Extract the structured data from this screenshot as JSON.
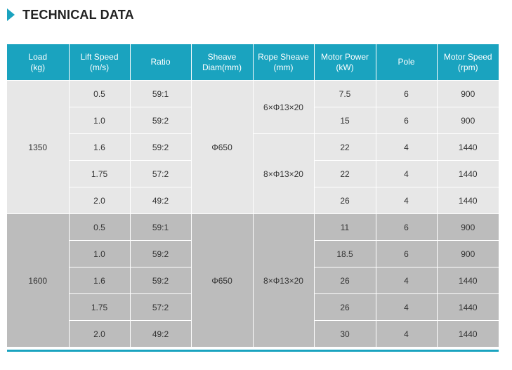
{
  "heading": {
    "title": "TECHNICAL DATA",
    "accent_color": "#1aa3bf"
  },
  "table": {
    "headers": [
      [
        "Load",
        "(kg)"
      ],
      [
        "Lift Speed",
        "(m/s)"
      ],
      [
        "Ratio"
      ],
      [
        "Sheave",
        "Diam(mm)"
      ],
      [
        "Rope Sheave",
        "(mm)"
      ],
      [
        "Motor Power",
        "(kW)"
      ],
      [
        "Pole"
      ],
      [
        "Motor Speed",
        "(rpm)"
      ]
    ],
    "groups": [
      {
        "load": "1350",
        "sheave": "Φ650",
        "rope": [
          {
            "label": "6×Φ13×20",
            "rows": 2
          },
          {
            "label": "8×Φ13×20",
            "rows": 3
          }
        ],
        "rows": [
          {
            "speed": "0.5",
            "ratio": "59:1",
            "power": "7.5",
            "pole": "6",
            "rpm": "900"
          },
          {
            "speed": "1.0",
            "ratio": "59:2",
            "power": "15",
            "pole": "6",
            "rpm": "900"
          },
          {
            "speed": "1.6",
            "ratio": "59:2",
            "power": "22",
            "pole": "4",
            "rpm": "1440"
          },
          {
            "speed": "1.75",
            "ratio": "57:2",
            "power": "22",
            "pole": "4",
            "rpm": "1440"
          },
          {
            "speed": "2.0",
            "ratio": "49:2",
            "power": "26",
            "pole": "4",
            "rpm": "1440"
          }
        ]
      },
      {
        "load": "1600",
        "sheave": "Φ650",
        "rope": [
          {
            "label": "8×Φ13×20",
            "rows": 5
          }
        ],
        "rows": [
          {
            "speed": "0.5",
            "ratio": "59:1",
            "power": "11",
            "pole": "6",
            "rpm": "900"
          },
          {
            "speed": "1.0",
            "ratio": "59:2",
            "power": "18.5",
            "pole": "6",
            "rpm": "900"
          },
          {
            "speed": "1.6",
            "ratio": "59:2",
            "power": "26",
            "pole": "4",
            "rpm": "1440"
          },
          {
            "speed": "1.75",
            "ratio": "57:2",
            "power": "26",
            "pole": "4",
            "rpm": "1440"
          },
          {
            "speed": "2.0",
            "ratio": "49:2",
            "power": "30",
            "pole": "4",
            "rpm": "1440"
          }
        ]
      }
    ]
  }
}
